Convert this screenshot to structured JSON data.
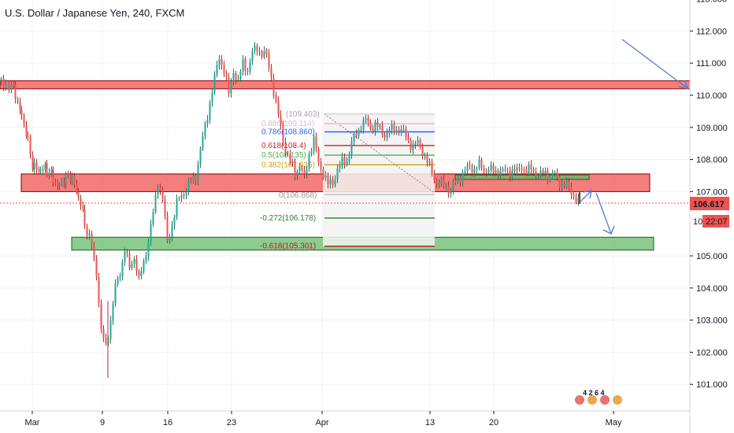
{
  "header": {
    "title": "U.S. Dollar / Japanese Yen, 240, FXCM"
  },
  "price_axis": {
    "labels": [
      "113.000",
      "112.000",
      "111.000",
      "110.000",
      "109.000",
      "108.000",
      "107.000",
      "105.000",
      "104.000",
      "103.000",
      "102.000",
      "101.000"
    ],
    "current_price": "106.617",
    "countdown": "22:07",
    "partial_label": "10"
  },
  "time_axis": {
    "labels": [
      "Mar",
      "9",
      "16",
      "23",
      "Apr",
      "13",
      "20",
      "May"
    ]
  },
  "calendar_badges": "4 2  6 4",
  "fib": {
    "high": "(109.403)",
    "low": "0(106.868)",
    "levels": [
      {
        "label": "0.886(109.114)",
        "value": 109.114,
        "color": "#e8b4d0"
      },
      {
        "label": "0.786(108.860)",
        "value": 108.86,
        "color": "#2962ff"
      },
      {
        "label": "0.618(108.4)",
        "value": 108.435,
        "color": "#c62828"
      },
      {
        "label": "0.5(108.135)",
        "value": 108.135,
        "color": "#4caf50"
      },
      {
        "label": "0.382(107.836)",
        "value": 107.836,
        "color": "#c8a415"
      },
      {
        "label": "-0.272(106.178)",
        "value": 106.178,
        "color": "#2e7d32"
      },
      {
        "label": "-0.618(105.301)",
        "value": 105.301,
        "color": "#b71c1c"
      }
    ]
  },
  "chart_data": {
    "type": "candlestick",
    "symbol": "USD/JPY",
    "timeframe": "240",
    "ylim": [
      100.3,
      113.0
    ],
    "zones": [
      {
        "kind": "resistance",
        "low": 110.2,
        "high": 110.45,
        "color": "#ef5350"
      },
      {
        "kind": "resistance",
        "low": 107.0,
        "high": 107.55,
        "color": "#ef5350"
      },
      {
        "kind": "support",
        "low": 105.18,
        "high": 105.58,
        "color": "#66bb6a"
      },
      {
        "kind": "support",
        "low": 107.38,
        "high": 107.52,
        "color": "#66bb6a"
      }
    ],
    "price_path": [
      [
        0,
        110.45
      ],
      [
        10,
        110.4
      ],
      [
        18,
        110.25
      ],
      [
        26,
        109.6
      ],
      [
        34,
        108.9
      ],
      [
        42,
        107.8
      ],
      [
        50,
        107.6
      ],
      [
        58,
        107.7
      ],
      [
        66,
        107.55
      ],
      [
        74,
        107.2
      ],
      [
        82,
        107.4
      ],
      [
        90,
        107.5
      ],
      [
        98,
        107.0
      ],
      [
        106,
        106.3
      ],
      [
        112,
        105.7
      ],
      [
        118,
        105.3
      ],
      [
        124,
        104.5
      ],
      [
        130,
        102.6
      ],
      [
        136,
        102.2
      ],
      [
        142,
        103.0
      ],
      [
        148,
        104.0
      ],
      [
        154,
        104.5
      ],
      [
        160,
        105.2
      ],
      [
        166,
        104.6
      ],
      [
        172,
        105.0
      ],
      [
        178,
        104.2
      ],
      [
        184,
        104.8
      ],
      [
        190,
        105.5
      ],
      [
        196,
        106.3
      ],
      [
        202,
        107.3
      ],
      [
        208,
        106.8
      ],
      [
        214,
        105.4
      ],
      [
        220,
        106.0
      ],
      [
        226,
        106.6
      ],
      [
        232,
        106.9
      ],
      [
        238,
        107.1
      ],
      [
        244,
        107.3
      ],
      [
        250,
        107.5
      ],
      [
        256,
        108.3
      ],
      [
        262,
        109.0
      ],
      [
        268,
        109.8
      ],
      [
        274,
        110.5
      ],
      [
        280,
        111.2
      ],
      [
        286,
        110.8
      ],
      [
        292,
        110.0
      ],
      [
        298,
        110.8
      ],
      [
        304,
        110.4
      ],
      [
        310,
        111.0
      ],
      [
        316,
        110.8
      ],
      [
        322,
        111.3
      ],
      [
        328,
        111.5
      ],
      [
        334,
        111.3
      ],
      [
        340,
        111.2
      ],
      [
        346,
        110.6
      ],
      [
        352,
        109.7
      ],
      [
        358,
        109.0
      ],
      [
        364,
        108.3
      ],
      [
        370,
        107.9
      ],
      [
        376,
        107.6
      ],
      [
        382,
        107.8
      ],
      [
        388,
        107.4
      ],
      [
        394,
        108.2
      ],
      [
        400,
        108.6
      ],
      [
        406,
        107.9
      ],
      [
        412,
        107.6
      ],
      [
        418,
        107.2
      ],
      [
        424,
        107.3
      ],
      [
        430,
        107.7
      ],
      [
        436,
        107.9
      ],
      [
        442,
        108.0
      ],
      [
        448,
        108.5
      ],
      [
        454,
        108.8
      ],
      [
        460,
        109.1
      ],
      [
        466,
        109.2
      ],
      [
        472,
        109.0
      ],
      [
        478,
        109.1
      ],
      [
        484,
        108.9
      ],
      [
        490,
        108.8
      ],
      [
        496,
        108.9
      ],
      [
        502,
        108.9
      ],
      [
        508,
        109.0
      ],
      [
        514,
        108.8
      ],
      [
        520,
        108.6
      ],
      [
        526,
        108.4
      ],
      [
        532,
        108.5
      ],
      [
        538,
        108.3
      ],
      [
        544,
        107.9
      ],
      [
        550,
        107.6
      ],
      [
        556,
        107.3
      ],
      [
        562,
        107.2
      ],
      [
        568,
        107.2
      ],
      [
        574,
        107.0
      ],
      [
        580,
        107.3
      ],
      [
        586,
        107.5
      ],
      [
        592,
        107.6
      ],
      [
        598,
        107.8
      ],
      [
        604,
        107.7
      ],
      [
        610,
        107.8
      ],
      [
        616,
        107.7
      ],
      [
        622,
        107.7
      ],
      [
        628,
        107.6
      ],
      [
        634,
        107.7
      ],
      [
        640,
        107.6
      ],
      [
        646,
        107.6
      ],
      [
        652,
        107.7
      ],
      [
        658,
        107.6
      ],
      [
        664,
        107.8
      ],
      [
        670,
        107.6
      ],
      [
        676,
        107.7
      ],
      [
        682,
        107.6
      ],
      [
        688,
        107.5
      ],
      [
        694,
        107.6
      ],
      [
        700,
        107.5
      ],
      [
        706,
        107.5
      ],
      [
        712,
        107.3
      ],
      [
        718,
        107.2
      ],
      [
        724,
        107.1
      ],
      [
        730,
        106.9
      ],
      [
        736,
        106.617
      ]
    ]
  }
}
